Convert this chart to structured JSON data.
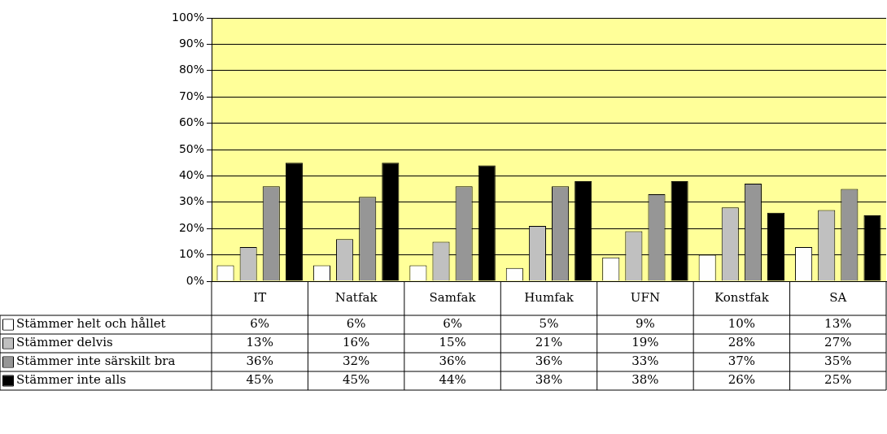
{
  "chart_data": {
    "type": "bar",
    "categories": [
      "IT",
      "Natfak",
      "Samfak",
      "Humfak",
      "UFN",
      "Konstfak",
      "SA"
    ],
    "series": [
      {
        "name": "Stämmer helt och hållet",
        "color": "#fefefe",
        "values": [
          6,
          6,
          6,
          5,
          9,
          10,
          13
        ],
        "value_labels": [
          "6%",
          "6%",
          "6%",
          "5%",
          "9%",
          "10%",
          "13%"
        ]
      },
      {
        "name": "Stämmer delvis",
        "color": "#c0c0c0",
        "values": [
          13,
          16,
          15,
          21,
          19,
          28,
          27
        ],
        "value_labels": [
          "13%",
          "16%",
          "15%",
          "21%",
          "19%",
          "28%",
          "27%"
        ]
      },
      {
        "name": "Stämmer inte särskilt bra",
        "color": "#969696",
        "values": [
          36,
          32,
          36,
          36,
          33,
          37,
          35
        ],
        "value_labels": [
          "36%",
          "32%",
          "36%",
          "36%",
          "33%",
          "37%",
          "35%"
        ]
      },
      {
        "name": "Stämmer inte alls",
        "color": "#000000",
        "values": [
          45,
          45,
          44,
          38,
          38,
          26,
          25
        ],
        "value_labels": [
          "45%",
          "45%",
          "44%",
          "38%",
          "38%",
          "26%",
          "25%"
        ]
      }
    ],
    "ylim": [
      0,
      100
    ],
    "yticks": [
      {
        "value": 0,
        "label": "0%"
      },
      {
        "value": 10,
        "label": "10%"
      },
      {
        "value": 20,
        "label": "20%"
      },
      {
        "value": 30,
        "label": "30%"
      },
      {
        "value": 40,
        "label": "40%"
      },
      {
        "value": 50,
        "label": "50%"
      },
      {
        "value": 60,
        "label": "60%"
      },
      {
        "value": 70,
        "label": "70%"
      },
      {
        "value": 80,
        "label": "80%"
      },
      {
        "value": 90,
        "label": "90%"
      },
      {
        "value": 100,
        "label": "100%"
      }
    ],
    "grid": "y",
    "legend": "bottom left"
  }
}
